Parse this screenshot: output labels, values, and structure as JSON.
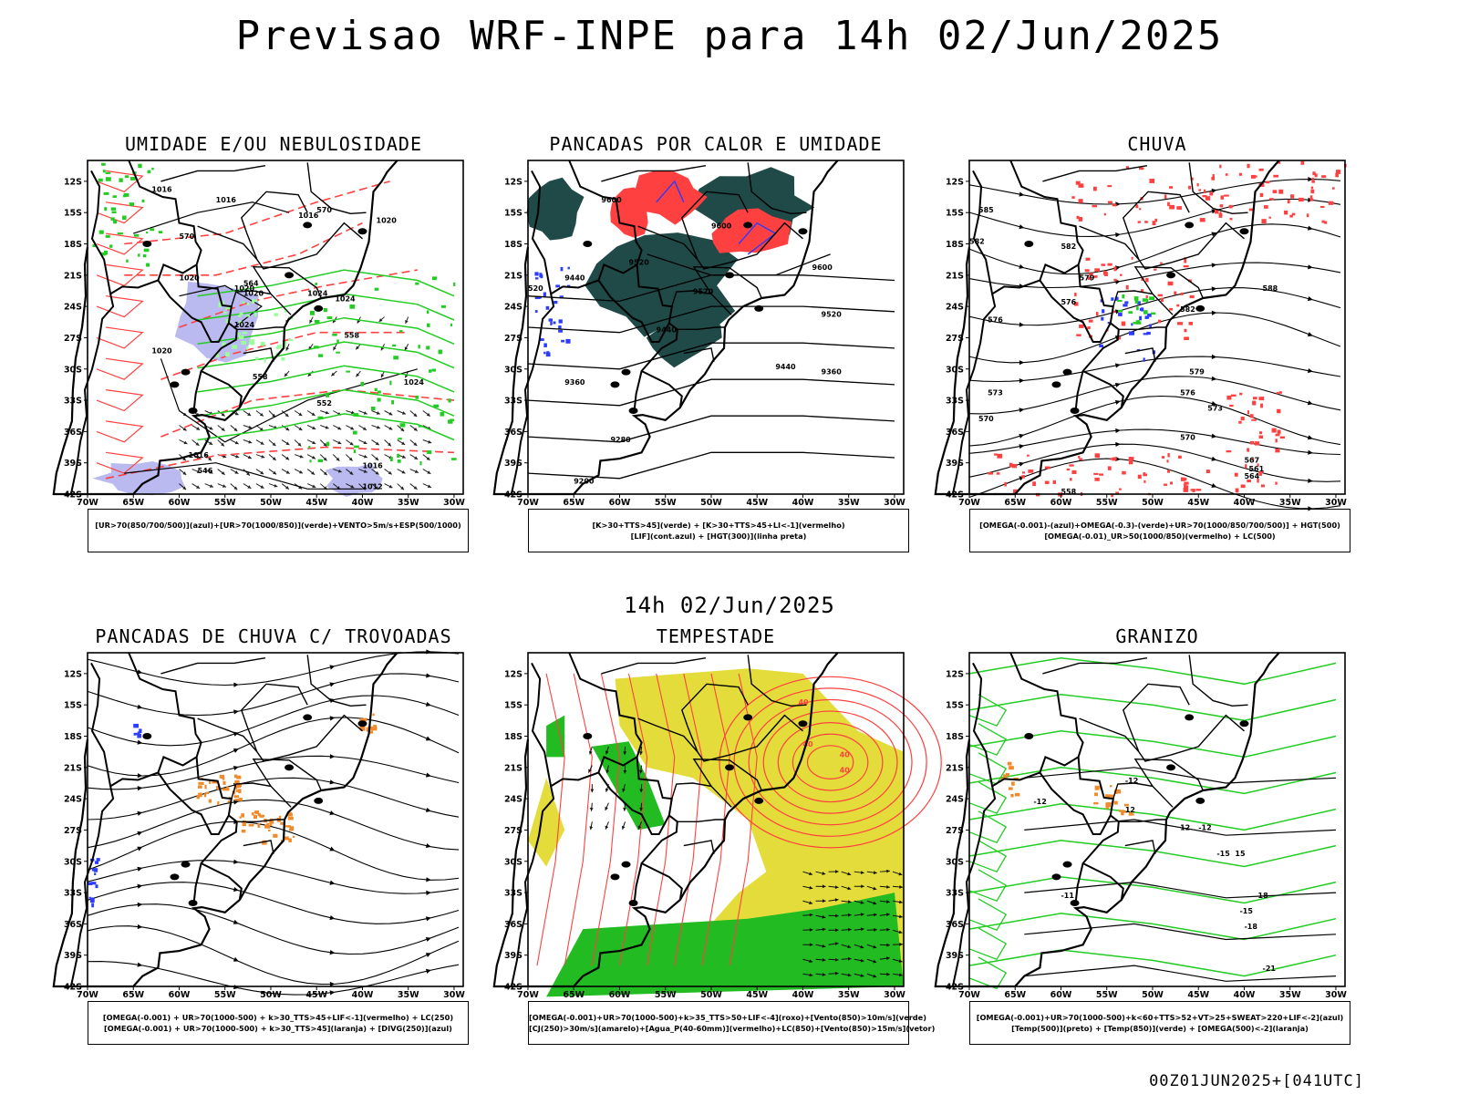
{
  "header": {
    "title": "Previsao WRF-INPE  para 14h 02/Jun/2025"
  },
  "middle": {
    "title": "14h 02/Jun/2025"
  },
  "footer": {
    "stamp": "00Z01JUN2025+[041UTC]"
  },
  "axes": {
    "lat_labels": [
      "12S",
      "15S",
      "18S",
      "21S",
      "24S",
      "27S",
      "30S",
      "33S",
      "36S",
      "39S",
      "42S"
    ],
    "lon_labels": [
      "70W",
      "65W",
      "60W",
      "55W",
      "50W",
      "45W",
      "40W",
      "35W",
      "30W"
    ]
  },
  "colors": {
    "green": "#22cc22",
    "red": "#ff4040",
    "blue": "#2b3bff",
    "lavender": "#a9a9ee",
    "darkteal": "#1f4a48",
    "yellow": "#e4dc3a",
    "orange": "#f08a2a"
  },
  "panels": [
    {
      "title": "UMIDADE E/OU NEBULOSIDADE",
      "caption": [
        "[UR>70(850/700/500)](azul)+[UR>70(1000/850)](verde)+VENTO>5m/s+ESP(500/1000)"
      ],
      "contour_labels": [
        "1016",
        "1016",
        "1016",
        "1020",
        "1020",
        "1020",
        "1024",
        "1024",
        "1024",
        "1024",
        "1020",
        "1016",
        "1012",
        "1016",
        "1020",
        "570",
        "570",
        "564",
        "558",
        "558",
        "552",
        "546"
      ]
    },
    {
      "title": "PANCADAS POR CALOR E UMIDADE",
      "caption": [
        "[K>30+TTS>45](verde) + [K>30+TTS>45+LI<-1](vermelho)",
        "[LIF](cont.azul) + [HGT(300)](linha preta)"
      ],
      "contour_labels": [
        "9600",
        "9600",
        "9600",
        "9520",
        "9520",
        "9440",
        "9440",
        "9520",
        "9440",
        "9360",
        "9360",
        "9280",
        "9200",
        "520"
      ]
    },
    {
      "title": "CHUVA",
      "caption": [
        "[OMEGA(-0.001)-(azul)+OMEGA(-0.3)-(verde)+UR>70(1000/850/700/500)] + HGT(500)",
        "[OMEGA(-0.01)_UR>50(1000/850)(vermelho) + LC(500)"
      ],
      "contour_labels": [
        "585",
        "582",
        "582",
        "579",
        "576",
        "576",
        "573",
        "570",
        "570",
        "567",
        "564",
        "561",
        "558",
        "588",
        "582",
        "579",
        "576",
        "573"
      ]
    },
    {
      "title": "PANCADAS DE CHUVA C/ TROVOADAS",
      "caption": [
        "[OMEGA(-0.001) + UR>70(1000-500) + k>30_TTS>45+LIF<-1](vermelho) + LC(250)",
        "[OMEGA(-0.001) + UR>70(1000-500) + k>30_TTS>45](laranja) + [DIVG(250)](azul)"
      ],
      "contour_labels": []
    },
    {
      "title": "TEMPESTADE",
      "caption": [
        "[OMEGA(-0.001)+UR>70(1000-500)+k>35_TTS>50+LIF<-4](roxo)+[Vento(850)>10m/s](verde)",
        "[CJ(250)>30m/s](amarelo)+[Agua_P(40-60mm)](vermelho)+LC(850)+[Vento(850)>15m/s](vetor)"
      ],
      "contour_labels": [
        "40",
        "40",
        "40",
        "40"
      ]
    },
    {
      "title": "GRANIZO",
      "caption": [
        "[OMEGA(-0.001)+UR>70(1000-500)+k<60+TTS>52+VT>25+SWEAT>220+LIF<-2](azul)",
        "[Temp(500)](preto) + [Temp(850)](verde) + [OMEGA(500)<-2](laranja)"
      ],
      "contour_labels": [
        "-12",
        "-12",
        "-12",
        "-15",
        "-15",
        "-18",
        "-21",
        "-11",
        "12",
        "12",
        "15",
        "18"
      ]
    }
  ]
}
